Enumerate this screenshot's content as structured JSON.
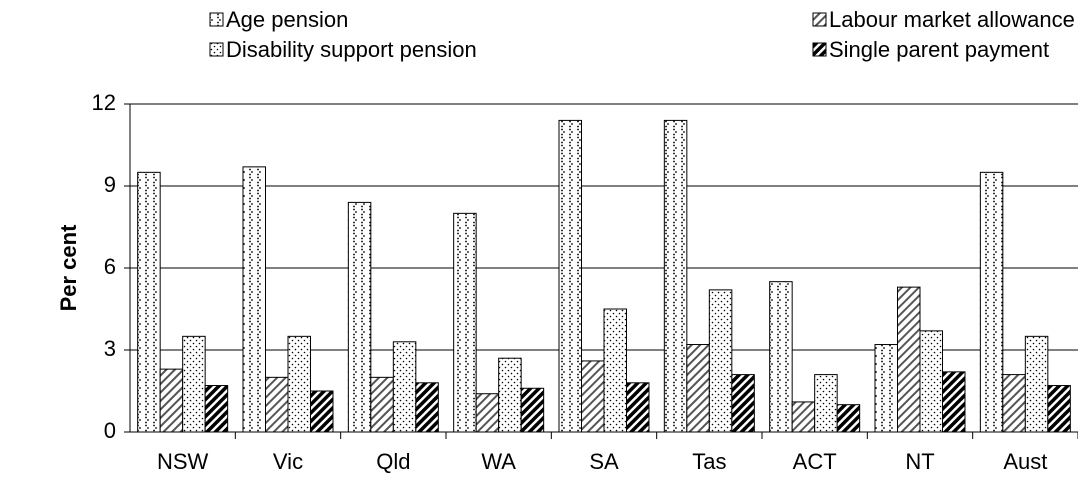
{
  "chart_data": {
    "type": "bar",
    "y_label": "Per cent",
    "categories": [
      "NSW",
      "Vic",
      "Qld",
      "WA",
      "SA",
      "Tas",
      "ACT",
      "NT",
      "Aust"
    ],
    "series": [
      {
        "name": "Age pension",
        "color": "#000000",
        "values": [
          9.5,
          9.7,
          8.4,
          8.0,
          11.4,
          11.4,
          5.5,
          3.2,
          9.5
        ]
      },
      {
        "name": "Labour market allowance (b)",
        "color": "#000000",
        "values": [
          2.3,
          2.0,
          2.0,
          1.4,
          2.6,
          3.2,
          1.1,
          5.3,
          2.1
        ]
      },
      {
        "name": "Disability support pension",
        "color": "#000000",
        "values": [
          3.5,
          3.5,
          3.3,
          2.7,
          4.5,
          5.2,
          2.1,
          3.7,
          3.5
        ]
      },
      {
        "name": "Single parent payment",
        "color": "#000000",
        "values": [
          1.7,
          1.5,
          1.8,
          1.6,
          1.8,
          2.1,
          1.0,
          2.2,
          1.7
        ]
      }
    ],
    "ylim": [
      0,
      12
    ],
    "yticks": [
      0,
      3,
      6,
      9,
      12
    ],
    "grid": true,
    "legend": "top"
  }
}
